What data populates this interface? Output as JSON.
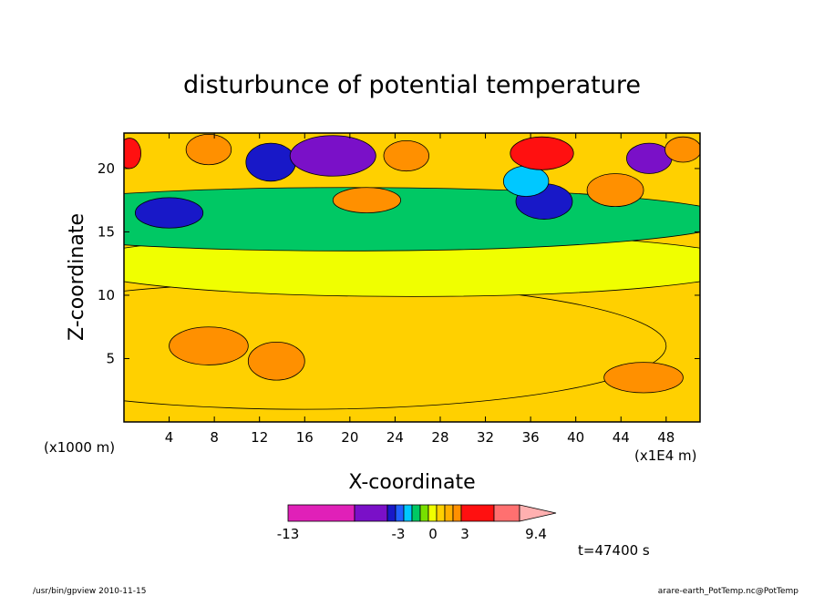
{
  "chart_data": {
    "type": "heatmap",
    "title": "disturbunce of potential temperature",
    "xlabel": "X-coordinate",
    "ylabel": "Z-coordinate",
    "x_unit_left": "(x1000 m)",
    "x_unit_right": "(x1E4 m)",
    "x_ticks": [
      "4",
      "8",
      "12",
      "16",
      "20",
      "24",
      "28",
      "32",
      "36",
      "40",
      "44",
      "48"
    ],
    "x_tick_values": [
      4,
      8,
      12,
      16,
      20,
      24,
      28,
      32,
      36,
      40,
      44,
      48
    ],
    "y_ticks": [
      "5",
      "10",
      "15",
      "20"
    ],
    "y_tick_values": [
      5,
      10,
      15,
      20
    ],
    "xlim": [
      0,
      51
    ],
    "ylim": [
      0,
      22.8
    ],
    "time_label": "t=47400 s",
    "colorbar": {
      "labels": [
        "-13",
        "-3",
        "0",
        "3",
        "9.4"
      ],
      "label_values": [
        -13,
        -3,
        0,
        3,
        9.4
      ],
      "colors": [
        "#e020b8",
        "#7a10c8",
        "#1818c8",
        "#2060ff",
        "#00c8ff",
        "#00c864",
        "#78e000",
        "#f0ff00",
        "#ffd000",
        "#ffb000",
        "#ff9000",
        "#ff1010",
        "#ff7070",
        "#ffb0b0"
      ]
    },
    "regions": [
      {
        "level": 1,
        "x_center": 16,
        "z_center": 6,
        "x_radius": 32,
        "z_radius": 5
      },
      {
        "level": 0.5,
        "x_center": 7.5,
        "z_center": 6,
        "x_radius": 3.5,
        "z_radius": 1.5
      },
      {
        "level": 0.5,
        "x_center": 13.5,
        "z_center": 4.8,
        "x_radius": 2.5,
        "z_radius": 1.5
      },
      {
        "level": 0.5,
        "x_center": 46,
        "z_center": 3.5,
        "x_radius": 3.5,
        "z_radius": 1.2
      },
      {
        "level": 0,
        "x_center": 25.5,
        "z_center": 12.4,
        "x_radius": 30,
        "z_radius": 2.5
      },
      {
        "level": -1,
        "x_center": 20,
        "z_center": 16,
        "x_radius": 34,
        "z_radius": 2.5
      },
      {
        "level": -2.5,
        "x_center": 4,
        "z_center": 16.5,
        "x_radius": 3,
        "z_radius": 1.2
      },
      {
        "level": -2.5,
        "x_center": 37.2,
        "z_center": 17.4,
        "x_radius": 2.5,
        "z_radius": 1.4
      },
      {
        "level": -2.5,
        "x_center": 13,
        "z_center": 20.5,
        "x_radius": 2.2,
        "z_radius": 1.5
      },
      {
        "level": -3.5,
        "x_center": 18.5,
        "z_center": 21,
        "x_radius": 3.8,
        "z_radius": 1.6
      },
      {
        "level": -3.5,
        "x_center": 46.5,
        "z_center": 20.8,
        "x_radius": 2,
        "z_radius": 1.2
      },
      {
        "level": -1.5,
        "x_center": 35.6,
        "z_center": 19,
        "x_radius": 2,
        "z_radius": 1.2
      },
      {
        "level": 2,
        "x_center": 7.5,
        "z_center": 21.5,
        "x_radius": 2,
        "z_radius": 1.2
      },
      {
        "level": 2,
        "x_center": 25,
        "z_center": 21,
        "x_radius": 2,
        "z_radius": 1.2
      },
      {
        "level": 2,
        "x_center": 21.5,
        "z_center": 17.5,
        "x_radius": 3,
        "z_radius": 1
      },
      {
        "level": 3.5,
        "x_center": 37,
        "z_center": 21.2,
        "x_radius": 2.8,
        "z_radius": 1.3
      },
      {
        "level": 2,
        "x_center": 43.5,
        "z_center": 18.3,
        "x_radius": 2.5,
        "z_radius": 1.3
      },
      {
        "level": 2.5,
        "x_center": 0.5,
        "z_center": 21.2,
        "x_radius": 1,
        "z_radius": 1.2
      },
      {
        "level": 2,
        "x_center": 49.5,
        "z_center": 21.5,
        "x_radius": 1.6,
        "z_radius": 1
      }
    ]
  },
  "footer": {
    "left": "/usr/bin/gpview  2010-11-15",
    "right": "arare-earth_PotTemp.nc@PotTemp"
  }
}
